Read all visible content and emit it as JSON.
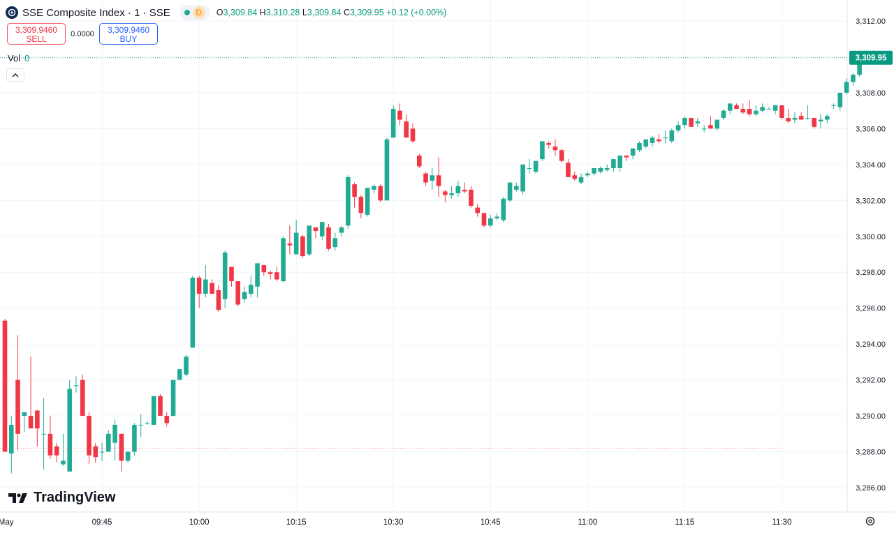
{
  "header": {
    "title": "SSE Composite Index · 1 · SSE",
    "interval_badge": "D",
    "open_label": "O",
    "open": "3,309.84",
    "high_label": "H",
    "high": "3,310.28",
    "low_label": "L",
    "low": "3,309.84",
    "close_label": "C",
    "close": "3,309.95",
    "change": "+0.12 (+0.00%)"
  },
  "trade": {
    "sell_price": "3,309.9460",
    "sell_label": "SELL",
    "spread": "0.0000",
    "buy_price": "3,309.9460",
    "buy_label": "BUY"
  },
  "volume": {
    "label": "Vol",
    "value": "0"
  },
  "watermark": "TradingView",
  "colors": {
    "up": "#22ab94",
    "down": "#f23645",
    "grid": "#f0f3fa",
    "text": "#131722",
    "price_label_bg": "#089981"
  },
  "chart_data": {
    "type": "candlestick",
    "symbol": "SSE Composite Index",
    "interval": "1",
    "y_ticks": [
      "3,286.00",
      "3,288.00",
      "3,290.00",
      "3,292.00",
      "3,294.00",
      "3,296.00",
      "3,298.00",
      "3,300.00",
      "3,302.00",
      "3,304.00",
      "3,306.00",
      "3,308.00",
      "3,310.00",
      "3,312.00"
    ],
    "x_ticks": [
      {
        "label": "May",
        "i": -1
      },
      {
        "label": "09:45",
        "i": 15
      },
      {
        "label": "10:00",
        "i": 30
      },
      {
        "label": "10:15",
        "i": 45
      },
      {
        "label": "10:30",
        "i": 60
      },
      {
        "label": "10:45",
        "i": 75
      },
      {
        "label": "11:00",
        "i": 90
      },
      {
        "label": "11:15",
        "i": 105
      },
      {
        "label": "11:30",
        "i": 120
      }
    ],
    "ylim": [
      3285.0,
      3313.0
    ],
    "last_price": "3,309.95",
    "last_price_value": 3309.95,
    "reference_price": 3288.2,
    "candles": [
      [
        3295.3,
        3295.4,
        3288.0,
        3288.0
      ],
      [
        3287.9,
        3290.0,
        3286.8,
        3289.5
      ],
      [
        3292.0,
        3294.5,
        3288.1,
        3289.0
      ],
      [
        3290.0,
        3290.2,
        3289.1,
        3290.2
      ],
      [
        3290.0,
        3293.3,
        3289.3,
        3289.3
      ],
      [
        3290.3,
        3290.3,
        3288.3,
        3289.3
      ],
      [
        3289.0,
        3291.0,
        3287.0,
        3289.0
      ],
      [
        3289.0,
        3290.0,
        3287.6,
        3287.8
      ],
      [
        3288.3,
        3288.5,
        3287.4,
        3287.8
      ],
      [
        3287.3,
        3289.0,
        3287.2,
        3287.5
      ],
      [
        3286.9,
        3292.0,
        3286.9,
        3291.5
      ],
      [
        3291.7,
        3292.2,
        3291.3,
        3291.7
      ],
      [
        3292.0,
        3292.3,
        3290.0,
        3290.0
      ],
      [
        3290.0,
        3290.2,
        3287.3,
        3287.8
      ],
      [
        3288.3,
        3288.5,
        3287.4,
        3287.7
      ],
      [
        3288.0,
        3288.5,
        3287.5,
        3288.0
      ],
      [
        3288.0,
        3289.2,
        3288.0,
        3289.0
      ],
      [
        3288.5,
        3289.8,
        3287.5,
        3289.5
      ],
      [
        3289.0,
        3289.0,
        3286.9,
        3287.5
      ],
      [
        3287.5,
        3288.0,
        3287.4,
        3288.0
      ],
      [
        3288.0,
        3289.6,
        3287.8,
        3289.5
      ],
      [
        3289.5,
        3290.1,
        3288.8,
        3289.5
      ],
      [
        3289.6,
        3289.7,
        3289.5,
        3289.6
      ],
      [
        3289.5,
        3291.1,
        3289.5,
        3291.1
      ],
      [
        3291.1,
        3291.2,
        3290.0,
        3290.0
      ],
      [
        3290.0,
        3290.2,
        3289.4,
        3289.6
      ],
      [
        3290.0,
        3292.0,
        3290.0,
        3292.0
      ],
      [
        3292.0,
        3292.6,
        3292.0,
        3292.6
      ],
      [
        3292.3,
        3293.4,
        3292.2,
        3293.3
      ],
      [
        3293.8,
        3297.8,
        3293.8,
        3297.7
      ],
      [
        3297.7,
        3297.8,
        3296.0,
        3296.8
      ],
      [
        3296.8,
        3298.4,
        3296.6,
        3297.6
      ],
      [
        3297.4,
        3297.6,
        3296.8,
        3296.8
      ],
      [
        3297.0,
        3297.3,
        3295.8,
        3295.9
      ],
      [
        3296.5,
        3299.2,
        3296.0,
        3299.1
      ],
      [
        3298.3,
        3298.3,
        3297.2,
        3297.5
      ],
      [
        3297.5,
        3297.5,
        3296.1,
        3296.2
      ],
      [
        3296.5,
        3297.2,
        3296.3,
        3296.9
      ],
      [
        3296.8,
        3297.8,
        3296.6,
        3297.3
      ],
      [
        3297.2,
        3298.5,
        3296.6,
        3298.5
      ],
      [
        3298.4,
        3298.4,
        3297.8,
        3298.0
      ],
      [
        3298.0,
        3298.1,
        3297.6,
        3297.9
      ],
      [
        3298.0,
        3298.3,
        3297.5,
        3297.6
      ],
      [
        3297.5,
        3300.0,
        3297.4,
        3299.9
      ],
      [
        3299.6,
        3300.6,
        3299.0,
        3299.5
      ],
      [
        3299.0,
        3300.9,
        3299.0,
        3300.2
      ],
      [
        3300.0,
        3300.1,
        3298.8,
        3298.9
      ],
      [
        3299.0,
        3300.6,
        3298.9,
        3300.6
      ],
      [
        3300.5,
        3300.5,
        3299.9,
        3300.3
      ],
      [
        3300.0,
        3300.8,
        3299.8,
        3300.8
      ],
      [
        3300.5,
        3300.7,
        3299.2,
        3299.3
      ],
      [
        3299.4,
        3300.2,
        3299.2,
        3299.9
      ],
      [
        3300.2,
        3300.6,
        3300.0,
        3300.5
      ],
      [
        3300.6,
        3303.4,
        3300.4,
        3303.3
      ],
      [
        3302.9,
        3303.0,
        3301.6,
        3302.2
      ],
      [
        3302.2,
        3302.3,
        3301.0,
        3301.3
      ],
      [
        3301.2,
        3302.7,
        3301.1,
        3302.7
      ],
      [
        3302.6,
        3302.9,
        3302.4,
        3302.8
      ],
      [
        3302.8,
        3302.9,
        3301.9,
        3302.0
      ],
      [
        3302.0,
        3305.5,
        3302.0,
        3305.4
      ],
      [
        3305.5,
        3307.3,
        3305.5,
        3307.1
      ],
      [
        3307.0,
        3307.4,
        3306.2,
        3306.5
      ],
      [
        3306.4,
        3306.8,
        3305.5,
        3305.5
      ],
      [
        3306.0,
        3306.3,
        3305.2,
        3305.3
      ],
      [
        3304.5,
        3304.6,
        3303.8,
        3303.9
      ],
      [
        3303.5,
        3303.6,
        3302.8,
        3303.0
      ],
      [
        3303.1,
        3303.8,
        3302.6,
        3303.4
      ],
      [
        3303.4,
        3304.4,
        3302.2,
        3302.8
      ],
      [
        3302.5,
        3302.6,
        3301.9,
        3302.3
      ],
      [
        3302.3,
        3302.8,
        3302.1,
        3302.4
      ],
      [
        3302.4,
        3303.1,
        3302.2,
        3302.8
      ],
      [
        3302.6,
        3303.0,
        3302.4,
        3302.5
      ],
      [
        3302.6,
        3302.8,
        3301.6,
        3301.7
      ],
      [
        3301.6,
        3301.8,
        3301.1,
        3301.3
      ],
      [
        3301.3,
        3301.3,
        3300.5,
        3300.6
      ],
      [
        3300.6,
        3301.2,
        3300.5,
        3301.0
      ],
      [
        3301.0,
        3301.3,
        3300.9,
        3301.1
      ],
      [
        3300.9,
        3302.2,
        3300.8,
        3302.1
      ],
      [
        3302.0,
        3303.0,
        3301.9,
        3303.0
      ],
      [
        3302.6,
        3303.0,
        3302.5,
        3302.8
      ],
      [
        3302.5,
        3304.0,
        3302.3,
        3304.0
      ],
      [
        3303.8,
        3304.3,
        3303.5,
        3303.8
      ],
      [
        3303.6,
        3304.2,
        3303.5,
        3304.2
      ],
      [
        3304.3,
        3305.3,
        3304.2,
        3305.3
      ],
      [
        3305.2,
        3305.3,
        3304.9,
        3305.1
      ],
      [
        3305.0,
        3305.4,
        3304.5,
        3304.8
      ],
      [
        3304.8,
        3304.9,
        3304.1,
        3304.2
      ],
      [
        3304.1,
        3304.3,
        3303.3,
        3303.3
      ],
      [
        3303.4,
        3303.6,
        3303.1,
        3303.2
      ],
      [
        3303.0,
        3303.5,
        3302.9,
        3303.3
      ],
      [
        3303.4,
        3303.6,
        3303.3,
        3303.5
      ],
      [
        3303.5,
        3303.8,
        3303.4,
        3303.8
      ],
      [
        3303.6,
        3303.9,
        3303.5,
        3303.8
      ],
      [
        3303.7,
        3304.0,
        3303.6,
        3303.8
      ],
      [
        3303.8,
        3304.3,
        3303.6,
        3304.3
      ],
      [
        3303.8,
        3304.5,
        3303.6,
        3304.5
      ],
      [
        3304.5,
        3304.5,
        3304.2,
        3304.4
      ],
      [
        3304.5,
        3304.9,
        3304.3,
        3304.9
      ],
      [
        3304.8,
        3305.3,
        3304.7,
        3305.2
      ],
      [
        3305.0,
        3305.4,
        3304.9,
        3305.4
      ],
      [
        3305.2,
        3305.6,
        3305.0,
        3305.5
      ],
      [
        3305.4,
        3305.7,
        3305.2,
        3305.3
      ],
      [
        3305.5,
        3305.9,
        3305.2,
        3305.5
      ],
      [
        3305.3,
        3306.0,
        3305.2,
        3305.9
      ],
      [
        3305.9,
        3306.4,
        3305.8,
        3306.2
      ],
      [
        3306.2,
        3306.7,
        3306.0,
        3306.6
      ],
      [
        3306.6,
        3306.6,
        3306.1,
        3306.1
      ],
      [
        3306.3,
        3306.6,
        3306.1,
        3306.4
      ],
      [
        3306.0,
        3306.2,
        3305.8,
        3306.0
      ],
      [
        3306.2,
        3306.7,
        3306.0,
        3306.0
      ],
      [
        3306.0,
        3306.5,
        3305.9,
        3306.5
      ],
      [
        3306.6,
        3307.1,
        3306.5,
        3307.0
      ],
      [
        3307.0,
        3307.4,
        3306.8,
        3307.4
      ],
      [
        3307.3,
        3307.4,
        3307.1,
        3307.1
      ],
      [
        3307.1,
        3307.4,
        3306.8,
        3306.9
      ],
      [
        3307.1,
        3307.6,
        3306.7,
        3306.8
      ],
      [
        3306.8,
        3307.3,
        3306.7,
        3307.0
      ],
      [
        3307.0,
        3307.4,
        3306.9,
        3307.2
      ],
      [
        3307.1,
        3307.2,
        3307.1,
        3307.1
      ],
      [
        3307.0,
        3307.3,
        3306.8,
        3307.3
      ],
      [
        3307.3,
        3307.3,
        3306.5,
        3306.6
      ],
      [
        3306.6,
        3307.1,
        3306.3,
        3306.4
      ],
      [
        3306.5,
        3306.9,
        3306.3,
        3306.6
      ],
      [
        3306.7,
        3306.9,
        3306.5,
        3306.5
      ],
      [
        3306.6,
        3307.3,
        3306.5,
        3306.6
      ],
      [
        3306.6,
        3306.6,
        3306.0,
        3306.1
      ],
      [
        3306.4,
        3306.8,
        3306.0,
        3306.5
      ],
      [
        3306.5,
        3306.8,
        3306.3,
        3306.7
      ],
      [
        3307.3,
        3307.4,
        3307.1,
        3307.3
      ],
      [
        3307.2,
        3308.0,
        3307.0,
        3308.0
      ],
      [
        3308.0,
        3308.8,
        3307.9,
        3308.6
      ],
      [
        3308.6,
        3309.1,
        3308.4,
        3309.0
      ],
      [
        3309.0,
        3309.9,
        3308.9,
        3309.9
      ],
      [
        3309.84,
        3310.28,
        3309.84,
        3309.95
      ]
    ]
  }
}
